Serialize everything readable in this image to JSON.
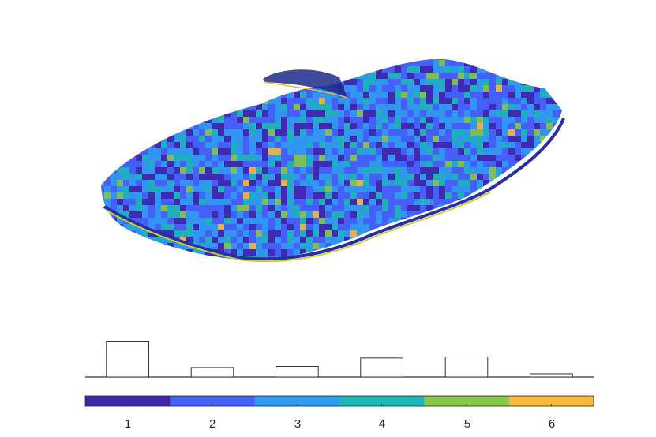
{
  "chart_data": [
    {
      "type": "3d-surface",
      "colormap": "parula",
      "color_range": [
        0.5,
        6.5
      ],
      "dominant_values": [
        2,
        3
      ]
    },
    {
      "type": "bar",
      "categories": [
        "1",
        "2",
        "3",
        "4",
        "5",
        "6"
      ],
      "values": [
        0.34,
        0.09,
        0.1,
        0.18,
        0.19,
        0.03
      ],
      "bar_fill": "#ffffff",
      "bar_edge": "#000000"
    },
    {
      "type": "colorbar",
      "orientation": "horizontal",
      "tick_labels": [
        "1",
        "2",
        "3",
        "4",
        "5",
        "6"
      ],
      "colors": [
        "#3e26a8",
        "#4561f7",
        "#2d9cf0",
        "#1cb7b6",
        "#85c84a",
        "#f7b93b"
      ]
    }
  ]
}
